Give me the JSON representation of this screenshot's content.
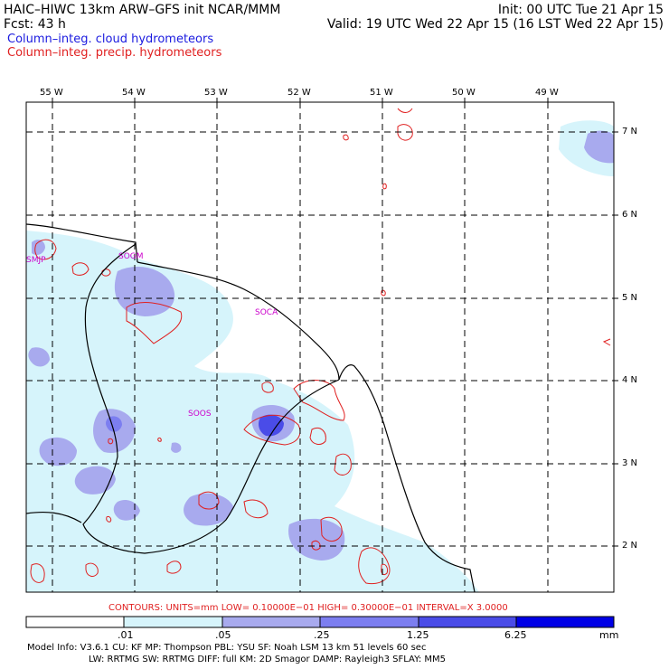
{
  "header": {
    "model_title": "HAIC–HIWC 13km ARW–GFS init   NCAR/MMM",
    "init_label": "Init: 00 UTC Tue 21 Apr 15",
    "forecast_label": "Fcst:   43 h",
    "valid_label": "Valid: 19 UTC Wed 22 Apr 15 (16 LST Wed 22 Apr 15)"
  },
  "legend": {
    "cloud_label": "Column–integ. cloud hydrometeors",
    "precip_label": "Column–integ. precip. hydrometeors",
    "cloud_color": "#1a1adf",
    "precip_color": "#e02020"
  },
  "map": {
    "longitude_labels": [
      "55 W",
      "54 W",
      "53 W",
      "52 W",
      "51 W",
      "50 W",
      "49 W"
    ],
    "latitude_labels": [
      "7 N",
      "6 N",
      "5 N",
      "4 N",
      "3 N",
      "2 N"
    ],
    "stations": [
      "SMJP",
      "SOGM",
      "SOCA",
      "SOOS"
    ]
  },
  "contour_info": "CONTOURS:  UNITS=mm  LOW= 0.10000E−01  HIGH= 0.30000E−01  INTERVAL=X  3.0000",
  "colorbar": {
    "tick_labels": [
      ".01",
      ".05",
      ".25",
      "1.25",
      "6.25"
    ],
    "units": "mm",
    "colors": [
      "#ffffff",
      "#d6f4fb",
      "#a8aaee",
      "#7c7ef0",
      "#4a4ce8",
      "#0000e6"
    ]
  },
  "footer": {
    "line1": "Model Info: V3.6.1    CU: KF      MP: Thompson    PBL: YSU       SF: Noah LSM     13 km   51 levels   60 sec",
    "line2": "LW: RRTMG    SW: RRTMG   DIFF: full    KM: 2D Smagor  DAMP: Rayleigh3  SFLAY: MM5"
  }
}
